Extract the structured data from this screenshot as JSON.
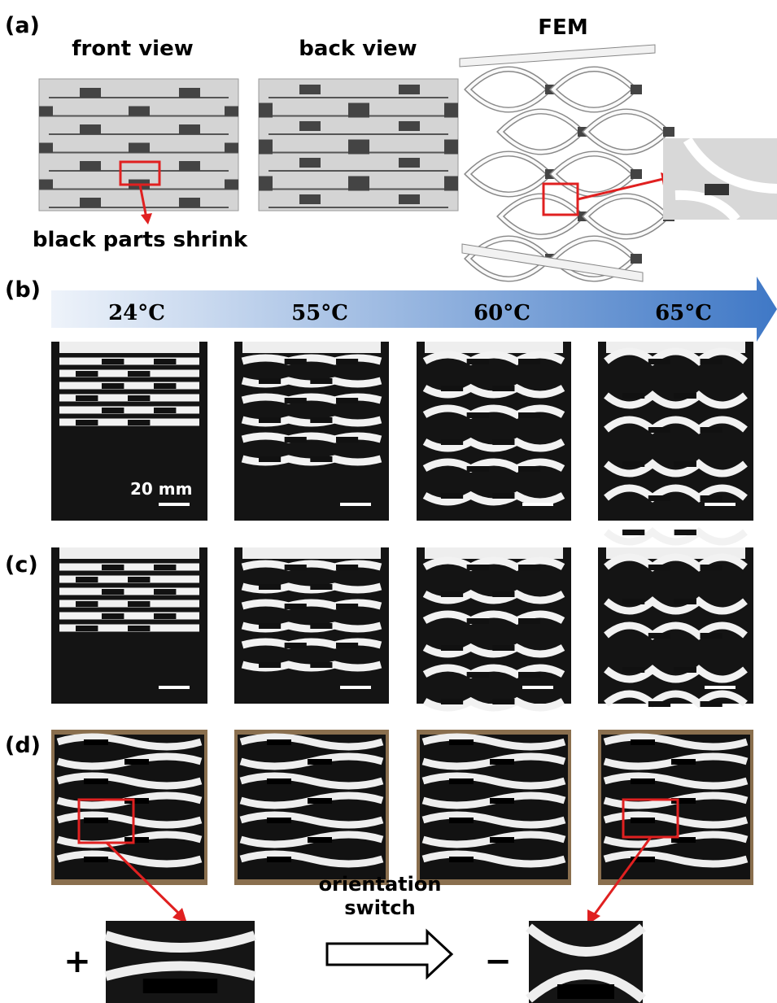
{
  "panel_a": {
    "label": "(a)",
    "front_view": "front view",
    "back_view": "back view",
    "fem": "FEM",
    "annotation": "black parts shrink"
  },
  "panel_b": {
    "label": "(b)",
    "temperatures": [
      "24°C",
      "55°C",
      "60°C",
      "65°C"
    ],
    "scale_bar": "20 mm"
  },
  "panel_c": {
    "label": "(c)"
  },
  "panel_d": {
    "label": "(d)",
    "plus": "+",
    "minus": "−",
    "switch_label": [
      "orientation",
      "switch"
    ]
  }
}
